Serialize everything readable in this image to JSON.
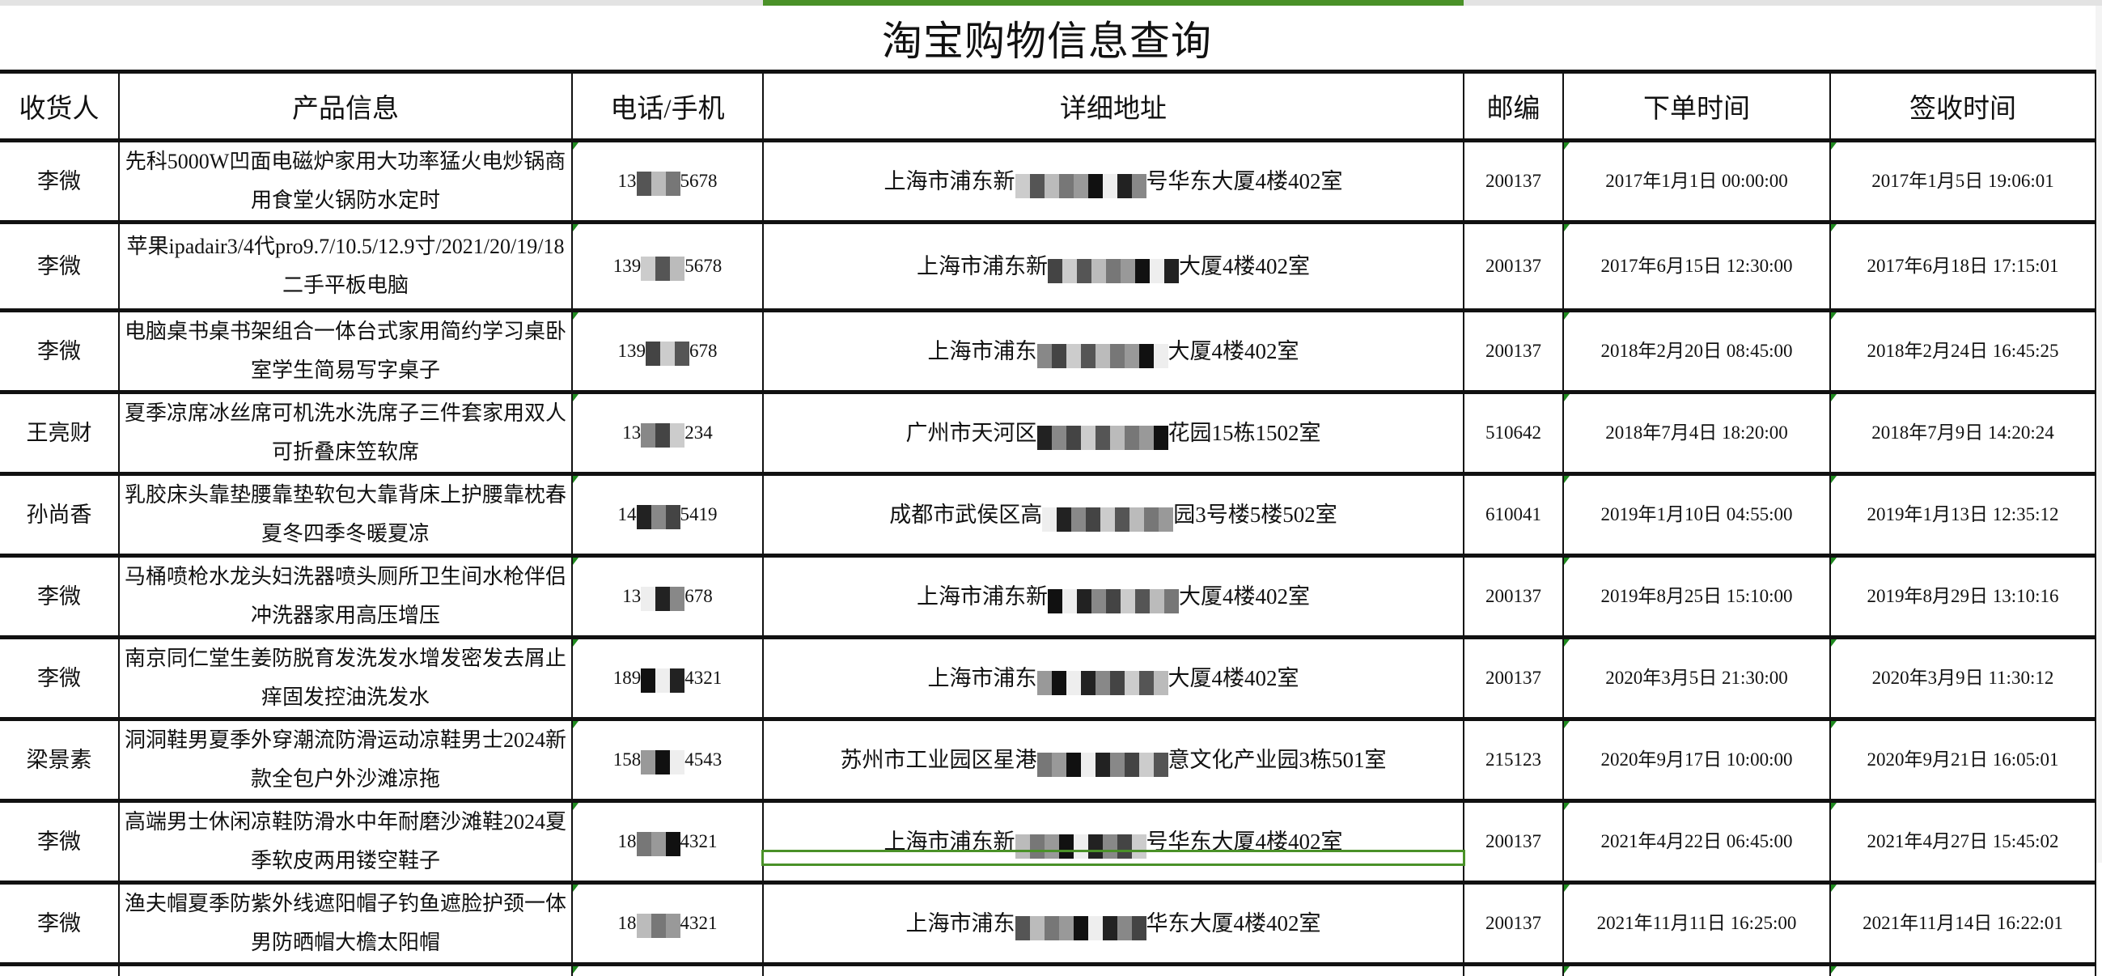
{
  "title": "淘宝购物信息查询",
  "selection_color": "#4a9128",
  "note_marker_color": "#1f8a1f",
  "headers": [
    "收货人",
    "产品信息",
    "电话/手机",
    "详细地址",
    "邮编",
    "下单时间",
    "签收时间"
  ],
  "rows": [
    {
      "name": "李微",
      "product": "先科5000W凹面电磁炉家用大功率猛火电炒锅商用食堂火锅防水定时",
      "phone_prefix": "13",
      "phone_suffix": "5678",
      "address_prefix": "上海市浦东新",
      "address_suffix": "号华东大厦4楼402室",
      "zip": "200137",
      "order_time": "2017年1月1日 00:00:00",
      "sign_time": "2017年1月5日 19:06:01"
    },
    {
      "name": "李微",
      "product": "苹果ipadair3/4代pro9.7/10.5/12.9寸/2021/20/19/18二手平板电脑",
      "phone_prefix": "139",
      "phone_suffix": "5678",
      "address_prefix": "上海市浦东新",
      "address_suffix": "大厦4楼402室",
      "zip": "200137",
      "order_time": "2017年6月15日 12:30:00",
      "sign_time": "2017年6月18日 17:15:01"
    },
    {
      "name": "李微",
      "product": "电脑桌书桌书架组合一体台式家用简约学习桌卧室学生简易写字桌子",
      "phone_prefix": "139",
      "phone_suffix": "678",
      "address_prefix": "上海市浦东",
      "address_suffix": "大厦4楼402室",
      "zip": "200137",
      "order_time": "2018年2月20日 08:45:00",
      "sign_time": "2018年2月24日 16:45:25"
    },
    {
      "name": "王亮财",
      "product": "夏季凉席冰丝席可机洗水洗席子三件套家用双人可折叠床笠软席",
      "phone_prefix": "13",
      "phone_suffix": "234",
      "address_prefix": "广州市天河区",
      "address_suffix": "花园15栋1502室",
      "zip": "510642",
      "order_time": "2018年7月4日 18:20:00",
      "sign_time": "2018年7月9日 14:20:24"
    },
    {
      "name": "孙尚香",
      "product": "乳胶床头靠垫腰靠垫软包大靠背床上护腰靠枕春夏冬四季冬暖夏凉",
      "phone_prefix": "14",
      "phone_suffix": "5419",
      "address_prefix": "成都市武侯区高",
      "address_suffix": "园3号楼5楼502室",
      "zip": "610041",
      "order_time": "2019年1月10日 04:55:00",
      "sign_time": "2019年1月13日 12:35:12"
    },
    {
      "name": "李微",
      "product": "马桶喷枪水龙头妇洗器喷头厕所卫生间水枪伴侣冲洗器家用高压增压",
      "phone_prefix": "13",
      "phone_suffix": "678",
      "address_prefix": "上海市浦东新",
      "address_suffix": "大厦4楼402室",
      "zip": "200137",
      "order_time": "2019年8月25日 15:10:00",
      "sign_time": "2019年8月29日 13:10:16"
    },
    {
      "name": "李微",
      "product": "南京同仁堂生姜防脱育发洗发水增发密发去屑止痒固发控油洗发水",
      "phone_prefix": "189",
      "phone_suffix": "4321",
      "address_prefix": "上海市浦东",
      "address_suffix": "大厦4楼402室",
      "zip": "200137",
      "order_time": "2020年3月5日 21:30:00",
      "sign_time": "2020年3月9日 11:30:12"
    },
    {
      "name": "梁景素",
      "product": "洞洞鞋男夏季外穿潮流防滑运动凉鞋男士2024新款全包户外沙滩凉拖",
      "phone_prefix": "158",
      "phone_suffix": "4543",
      "address_prefix": "苏州市工业园区星港",
      "address_suffix": "意文化产业园3栋501室",
      "zip": "215123",
      "order_time": "2020年9月17日 10:00:00",
      "sign_time": "2020年9月21日 16:05:01"
    },
    {
      "name": "李微",
      "product": "高端男士休闲凉鞋防滑水中年耐磨沙滩鞋2024夏季软皮两用镂空鞋子",
      "phone_prefix": "18",
      "phone_suffix": "4321",
      "address_prefix": "上海市浦东新",
      "address_suffix": "号华东大厦4楼402室",
      "zip": "200137",
      "order_time": "2021年4月22日 06:45:00",
      "sign_time": "2021年4月27日 15:45:02"
    },
    {
      "name": "李微",
      "product": "渔夫帽夏季防紫外线遮阳帽子钓鱼遮脸护颈一体男防晒帽大檐太阳帽",
      "phone_prefix": "18",
      "phone_suffix": "4321",
      "address_prefix": "上海市浦东",
      "address_suffix": "华东大厦4楼402室",
      "zip": "200137",
      "order_time": "2021年11月11日 16:25:00",
      "sign_time": "2021年11月14日 16:22:01"
    }
  ]
}
